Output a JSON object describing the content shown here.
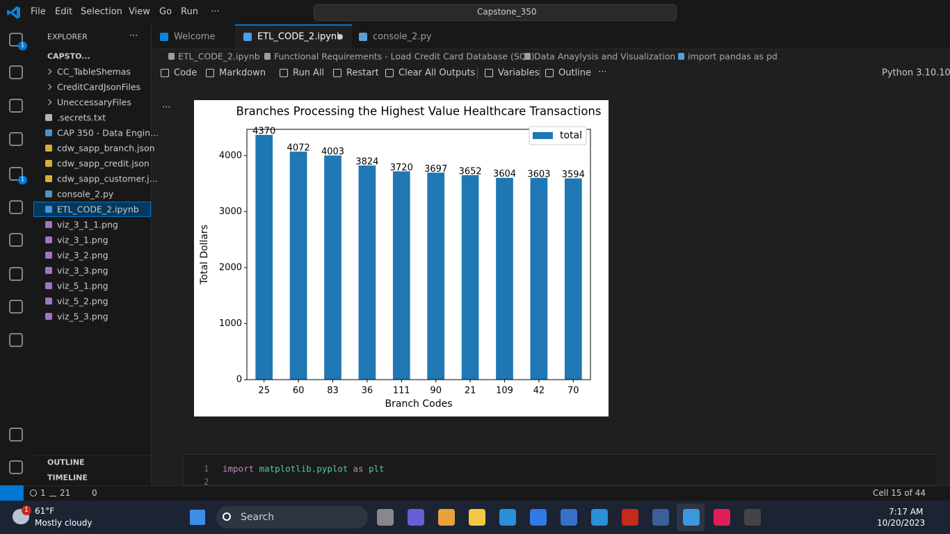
{
  "title_bar": {
    "menu": [
      "File",
      "Edit",
      "Selection",
      "View",
      "Go",
      "Run",
      "···"
    ],
    "search": "Capstone_350"
  },
  "activity_badges": [
    "1",
    "1"
  ],
  "explorer": {
    "title": "EXPLORER",
    "more": "···",
    "folder": "CAPSTO...",
    "items": [
      {
        "name": "CC_TableShemas",
        "kind": "folder"
      },
      {
        "name": "CreditCardJsonFiles",
        "kind": "folder"
      },
      {
        "name": "UneccessaryFiles",
        "kind": "folder"
      },
      {
        "name": ".secrets.txt",
        "kind": "text"
      },
      {
        "name": "CAP 350 - Data Engin...",
        "kind": "doc"
      },
      {
        "name": "cdw_sapp_branch.json",
        "kind": "json"
      },
      {
        "name": "cdw_sapp_credit.json",
        "kind": "json"
      },
      {
        "name": "cdw_sapp_customer.j...",
        "kind": "json"
      },
      {
        "name": "console_2.py",
        "kind": "py"
      },
      {
        "name": "ETL_CODE_2.ipynb",
        "kind": "nb"
      },
      {
        "name": "viz_3_1_1.png",
        "kind": "img"
      },
      {
        "name": "viz_3_1.png",
        "kind": "img"
      },
      {
        "name": "viz_3_2.png",
        "kind": "img"
      },
      {
        "name": "viz_3_3.png",
        "kind": "img"
      },
      {
        "name": "viz_5_1.png",
        "kind": "img"
      },
      {
        "name": "viz_5_2.png",
        "kind": "img"
      },
      {
        "name": "viz_5_3.png",
        "kind": "img"
      }
    ],
    "selected": 9
  },
  "sections": [
    "OUTLINE",
    "TIMELINE"
  ],
  "tabs": [
    "Welcome",
    "ETL_CODE_2.ipynb",
    "console_2.py"
  ],
  "breadcrumb": [
    "ETL_CODE_2.ipynb",
    "Functional Requirements - Load Credit Card Database (SQL)",
    "Data Anaylysis and Visualization",
    "import pandas as pd"
  ],
  "toolbar": {
    "actions": [
      "Code",
      "Markdown",
      "Run All",
      "Restart",
      "Clear All Outputs",
      "Variables",
      "Outline"
    ],
    "more": "···",
    "kernel": "Python 3.10.10"
  },
  "cell_more": "...",
  "code": {
    "line_numbers": [
      1,
      2
    ],
    "tokens": [
      "import",
      "matplotlib.pyplot",
      "as",
      "plt"
    ]
  },
  "status_bar": {
    "errors": 1,
    "warnings": 21,
    "ports": 0,
    "cell": "Cell 15 of 44"
  },
  "taskbar": {
    "weather_badge": 1,
    "temp": "61°F",
    "weather": "Mostly cloudy",
    "search": "Search",
    "time": "7:17 AM",
    "date": "10/20/2023"
  },
  "chart_data": {
    "type": "bar",
    "title": "Branches Processing the Highest Value Healthcare Transactions",
    "x_label": "Branch Codes",
    "y_label": "Total Dollars",
    "categories": [
      "25",
      "60",
      "83",
      "36",
      "111",
      "90",
      "21",
      "109",
      "42",
      "70"
    ],
    "series": [
      {
        "name": "total",
        "color": "#1f77b4",
        "values": [
          4370,
          4072,
          4003,
          3824,
          3720,
          3697,
          3652,
          3604,
          3603,
          3594
        ]
      }
    ],
    "ylim": [
      0,
      4470
    ],
    "yticks": [
      0,
      1000,
      2000,
      3000,
      4000
    ],
    "legend": "upper right"
  }
}
